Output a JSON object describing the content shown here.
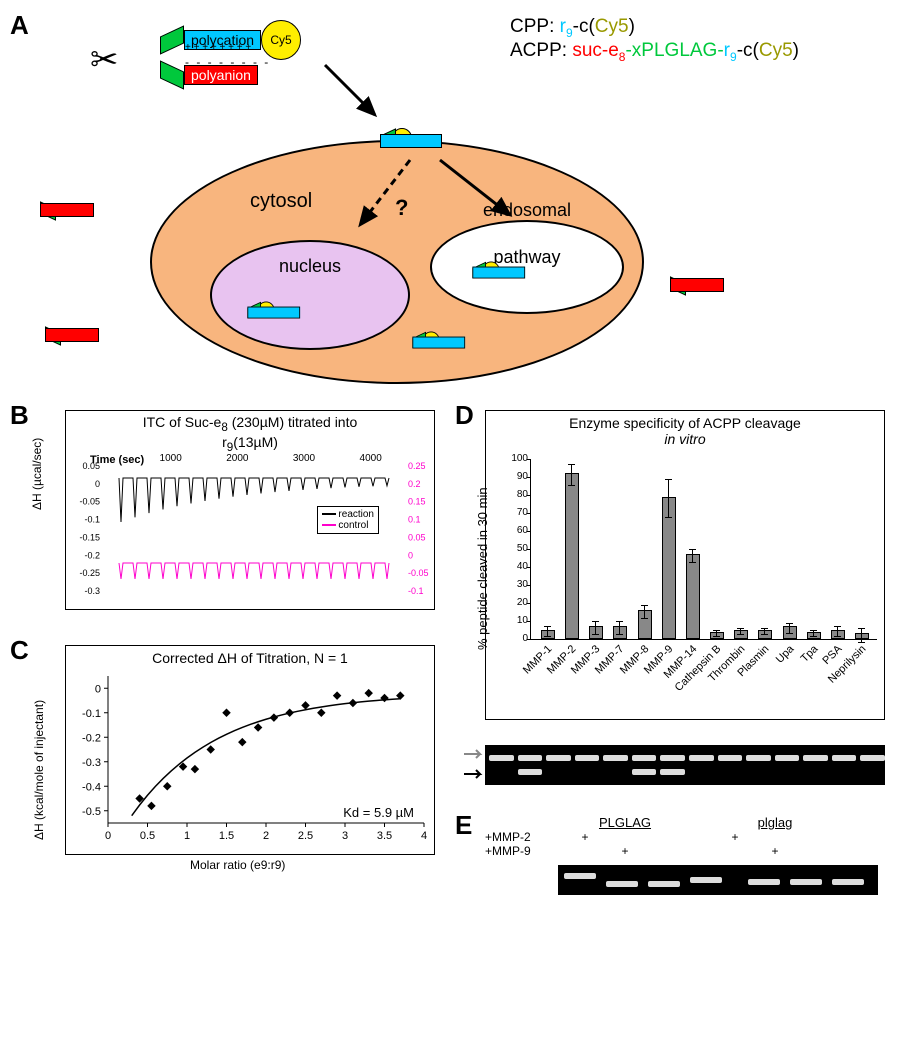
{
  "panelA": {
    "label": "A",
    "formulae": {
      "cpp_prefix": "CPP: ",
      "cpp_r9": "r",
      "cpp_9": "9",
      "cpp_tail": "-c(",
      "cpp_cy5": "Cy5",
      "cpp_close": ")",
      "acpp_prefix": "ACPP: ",
      "acpp_suc": "suc-e",
      "acpp_8": "8",
      "acpp_link": "-xPLGLAG-",
      "acpp_r9": "r",
      "acpp_9": "9",
      "acpp_tail": "-c(",
      "acpp_cy5": "Cy5",
      "acpp_close": ")"
    },
    "labels": {
      "polycation": "polycation",
      "polyanion": "polyanion",
      "cy5": "Cy5",
      "plus": "+ + + + + + + +",
      "minus": "- - - - - - - -",
      "cytosol": "cytosol",
      "nucleus": "nucleus",
      "endosomal": "endosomal",
      "pathway": "pathway",
      "question": "?"
    }
  },
  "panelB": {
    "label": "B",
    "title_top": "ITC of Suc-e",
    "title_8": "8",
    "title_mid": " (230µM) titrated into",
    "title_bot": "r",
    "title_9": "9",
    "title_conc": "(13µM)",
    "xlabel": "Time (sec)",
    "ylabel": "ΔH (µcal/sec)",
    "xticks": [
      1000,
      2000,
      3000,
      4000
    ],
    "yticks_left": [
      0.05,
      0,
      -0.05,
      -0.1,
      -0.15,
      -0.2,
      -0.25,
      -0.3
    ],
    "yticks_right": [
      0.25,
      0.2,
      0.15,
      0.1,
      0.05,
      0,
      -0.05,
      -0.1
    ],
    "legend": {
      "reaction": "reaction",
      "control": "control"
    },
    "colors": {
      "reaction": "#000000",
      "control": "#ff00cc",
      "border": "#000000",
      "bg": "#ffffff"
    }
  },
  "panelC": {
    "label": "C",
    "title": "Corrected ΔH of Titration, N = 1",
    "xlabel": "Molar ratio (e9:r9)",
    "ylabel": "ΔH (kcal/mole of injectant)",
    "kd": "Kd = 5.9 µM",
    "xticks": [
      0,
      0.5,
      1,
      1.5,
      2,
      2.5,
      3,
      3.5,
      4
    ],
    "yticks": [
      0,
      -0.1,
      -0.2,
      -0.3,
      -0.4,
      -0.5
    ],
    "points": [
      {
        "x": 0.4,
        "y": -0.45
      },
      {
        "x": 0.55,
        "y": -0.48
      },
      {
        "x": 0.75,
        "y": -0.4
      },
      {
        "x": 0.95,
        "y": -0.32
      },
      {
        "x": 1.1,
        "y": -0.33
      },
      {
        "x": 1.3,
        "y": -0.25
      },
      {
        "x": 1.5,
        "y": -0.1
      },
      {
        "x": 1.7,
        "y": -0.22
      },
      {
        "x": 1.9,
        "y": -0.16
      },
      {
        "x": 2.1,
        "y": -0.12
      },
      {
        "x": 2.3,
        "y": -0.1
      },
      {
        "x": 2.5,
        "y": -0.07
      },
      {
        "x": 2.7,
        "y": -0.1
      },
      {
        "x": 2.9,
        "y": -0.03
      },
      {
        "x": 3.1,
        "y": -0.06
      },
      {
        "x": 3.3,
        "y": -0.02
      },
      {
        "x": 3.5,
        "y": -0.04
      },
      {
        "x": 3.7,
        "y": -0.03
      }
    ],
    "colors": {
      "point": "#000000",
      "line": "#000000",
      "border": "#000000"
    }
  },
  "panelD": {
    "label": "D",
    "title_line1": "Enzyme specificity of ACPP cleavage",
    "title_line2": "in vitro",
    "ylabel": "% peptide cleaved in 30 min",
    "yticks": [
      0,
      10,
      20,
      30,
      40,
      50,
      60,
      70,
      80,
      90,
      100
    ],
    "categories": [
      "MMP-1",
      "MMP-2",
      "MMP-3",
      "MMP-7",
      "MMP-8",
      "MMP-9",
      "MMP-14",
      "Cathepsin B",
      "Thrombin",
      "Plasmin",
      "Upa",
      "Tpa",
      "PSA",
      "Neprilysin"
    ],
    "values": [
      4,
      91,
      6,
      6,
      15,
      78,
      46,
      3,
      4,
      4,
      6,
      3,
      4,
      2
    ],
    "errors": [
      3,
      6,
      4,
      4,
      4,
      11,
      4,
      2,
      2,
      2,
      3,
      2,
      3,
      4
    ],
    "colors": {
      "bar": "#888888",
      "border": "#000000",
      "bg": "#ffffff"
    }
  },
  "panelE": {
    "label": "E",
    "header_L": "PLGLAG",
    "header_D": "plglag",
    "row1": "+MMP-2",
    "row2": "+MMP-9",
    "plus": "+"
  }
}
